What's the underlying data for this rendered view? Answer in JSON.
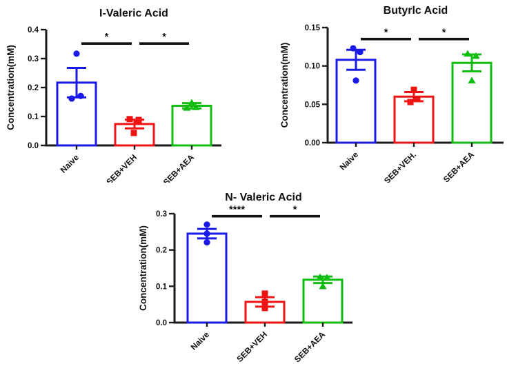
{
  "figure": {
    "background": "#ffffff",
    "axis_color": "#1a1a1a",
    "text_color": "#111111"
  },
  "chart_data": [
    {
      "type": "bar",
      "title": "I-Valeric Acid",
      "ylabel": "Concentration(mM)",
      "xlabel": "",
      "ylim": [
        0,
        0.4
      ],
      "grid": false,
      "legend": "none",
      "yticks": [
        {
          "value": 0.0,
          "label": "0.0"
        },
        {
          "value": 0.1,
          "label": "0.1"
        },
        {
          "value": 0.2,
          "label": "0.2"
        },
        {
          "value": 0.3,
          "label": "0.3"
        },
        {
          "value": 0.4,
          "label": "0.4"
        }
      ],
      "categories": [
        "Naive",
        "SEB+VEH",
        "SEB+AEA"
      ],
      "series": [
        {
          "name": "Naive",
          "color": "#1a1ae6",
          "marker": "circle",
          "mean": 0.217,
          "err_low": 0.166,
          "err_high": 0.268,
          "points": [
            {
              "value": 0.317,
              "dx": 0
            },
            {
              "value": 0.162,
              "dx": -7
            },
            {
              "value": 0.171,
              "dx": 6
            }
          ]
        },
        {
          "name": "SEB+VEH",
          "color": "#ee1414",
          "marker": "square",
          "mean": 0.074,
          "err_low": 0.059,
          "err_high": 0.089,
          "points": [
            {
              "value": 0.091,
              "dx": -7
            },
            {
              "value": 0.088,
              "dx": 6
            },
            {
              "value": 0.043,
              "dx": -1
            }
          ]
        },
        {
          "name": "SEB+AEA",
          "color": "#12bd12",
          "marker": "triangle",
          "mean": 0.137,
          "err_low": 0.128,
          "err_high": 0.146,
          "points": [
            {
              "value": 0.148,
              "dx": 0
            },
            {
              "value": 0.13,
              "dx": -7
            },
            {
              "value": 0.132,
              "dx": 6
            }
          ]
        }
      ],
      "significance": [
        {
          "from": 0,
          "to": 1,
          "label": "*",
          "height": 0.352
        },
        {
          "from": 1,
          "to": 2,
          "label": "*",
          "height": 0.352
        }
      ]
    },
    {
      "type": "bar",
      "title": "Butyrlc Acid",
      "ylabel": "Concentration(mM)",
      "xlabel": "",
      "ylim": [
        0,
        0.15
      ],
      "grid": false,
      "legend": "none",
      "yticks": [
        {
          "value": 0.0,
          "label": "0.00"
        },
        {
          "value": 0.05,
          "label": "0.05"
        },
        {
          "value": 0.1,
          "label": "0.10"
        },
        {
          "value": 0.15,
          "label": "0.15"
        }
      ],
      "categories": [
        "Naive",
        "SEB+VEH.",
        "SEB+AEA"
      ],
      "series": [
        {
          "name": "Naive",
          "color": "#1a1ae6",
          "marker": "circle",
          "mean": 0.108,
          "err_low": 0.095,
          "err_high": 0.121,
          "points": [
            {
              "value": 0.123,
              "dx": -4
            },
            {
              "value": 0.118,
              "dx": 6
            },
            {
              "value": 0.081,
              "dx": 0
            }
          ]
        },
        {
          "name": "SEB+VEH.",
          "color": "#ee1414",
          "marker": "square",
          "mean": 0.06,
          "err_low": 0.054,
          "err_high": 0.066,
          "points": [
            {
              "value": 0.069,
              "dx": 0
            },
            {
              "value": 0.057,
              "dx": 5
            },
            {
              "value": 0.053,
              "dx": -5
            }
          ]
        },
        {
          "name": "SEB+AEA",
          "color": "#12bd12",
          "marker": "triangle",
          "mean": 0.104,
          "err_low": 0.093,
          "err_high": 0.115,
          "points": [
            {
              "value": 0.116,
              "dx": -6
            },
            {
              "value": 0.113,
              "dx": 6
            },
            {
              "value": 0.081,
              "dx": 0
            }
          ]
        }
      ],
      "significance": [
        {
          "from": 0,
          "to": 1,
          "label": "*",
          "height": 0.135
        },
        {
          "from": 1,
          "to": 2,
          "label": "*",
          "height": 0.135
        }
      ]
    },
    {
      "type": "bar",
      "title": "N- Valeric Acid",
      "ylabel": "Concentration(mM)",
      "xlabel": "",
      "ylim": [
        0,
        0.3
      ],
      "grid": false,
      "legend": "none",
      "yticks": [
        {
          "value": 0.0,
          "label": "0.0"
        },
        {
          "value": 0.1,
          "label": "0.1"
        },
        {
          "value": 0.2,
          "label": "0.2"
        },
        {
          "value": 0.3,
          "label": "0.3"
        }
      ],
      "categories": [
        "Naive",
        "SEB+VEH",
        "SEB+AEA"
      ],
      "series": [
        {
          "name": "Naive",
          "color": "#1a1ae6",
          "marker": "circle",
          "mean": 0.245,
          "err_low": 0.232,
          "err_high": 0.258,
          "points": [
            {
              "value": 0.27,
              "dx": 0
            },
            {
              "value": 0.245,
              "dx": 0
            },
            {
              "value": 0.221,
              "dx": 0
            }
          ]
        },
        {
          "name": "SEB+VEH",
          "color": "#ee1414",
          "marker": "square",
          "mean": 0.057,
          "err_low": 0.044,
          "err_high": 0.07,
          "points": [
            {
              "value": 0.08,
              "dx": 0
            },
            {
              "value": 0.057,
              "dx": 0
            },
            {
              "value": 0.04,
              "dx": 0
            }
          ]
        },
        {
          "name": "SEB+AEA",
          "color": "#12bd12",
          "marker": "triangle",
          "mean": 0.118,
          "err_low": 0.109,
          "err_high": 0.127,
          "points": [
            {
              "value": 0.125,
              "dx": -4
            },
            {
              "value": 0.124,
              "dx": 6
            },
            {
              "value": 0.1,
              "dx": 0
            }
          ]
        }
      ],
      "significance": [
        {
          "from": 0,
          "to": 1,
          "label": "****",
          "height": 0.293
        },
        {
          "from": 1,
          "to": 2,
          "label": "*",
          "height": 0.293
        }
      ]
    }
  ]
}
